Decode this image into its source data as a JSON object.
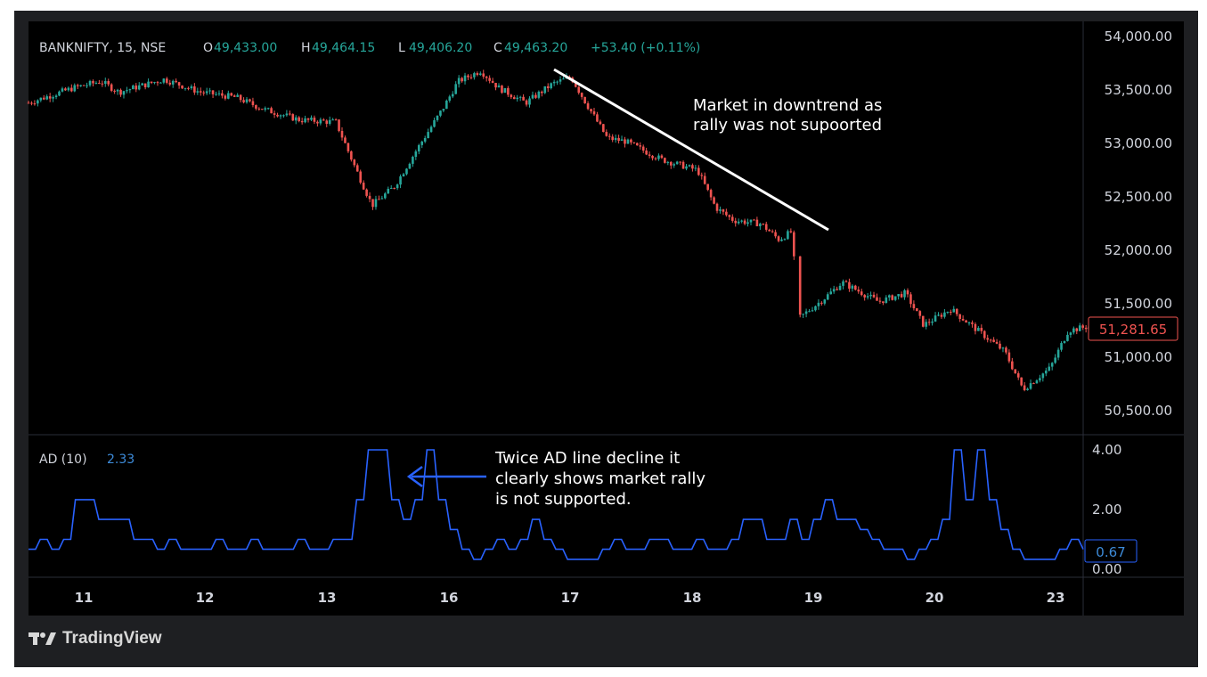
{
  "header": {
    "symbol": "BANKNIFTY, 15, NSE",
    "o_label": "O",
    "o_value": "49,433.00",
    "h_label": "H",
    "h_value": "49,464.15",
    "l_label": "L",
    "l_value": "49,406.20",
    "c_label": "C",
    "c_value": "49,463.20",
    "change": "+53.40 (+0.11%)"
  },
  "indicator": {
    "label": "AD (10)",
    "value": "2.33"
  },
  "price_axis_ticks": [
    "54,000.00",
    "53,500.00",
    "53,000.00",
    "52,500.00",
    "52,000.00",
    "51,500.00",
    "51,000.00",
    "50,500.00"
  ],
  "current_price_label": "51,281.65",
  "ad_axis_ticks": [
    "4.00",
    "2.00",
    "0.00"
  ],
  "ad_current_label": "0.67",
  "time_axis_ticks": [
    "11",
    "12",
    "13",
    "16",
    "17",
    "18",
    "19",
    "20",
    "23"
  ],
  "annotations": {
    "trend_note_line1": "Market in downtrend as",
    "trend_note_line2": "rally was not supoorted",
    "ad_note_line1": "Twice AD line decline it",
    "ad_note_line2": "clearly shows market rally",
    "ad_note_line3": "is not supported."
  },
  "branding": "TradingView",
  "colors": {
    "up": "#26a69a",
    "down": "#ef5350",
    "ad_line": "#2962ff",
    "ad_value": "#3d8bd9",
    "trendline": "#ffffff",
    "arrow": "#2962ff"
  },
  "chart_data": [
    {
      "type": "candlestick",
      "title": "BANKNIFTY, 15, NSE",
      "x_ticks": [
        "11",
        "12",
        "13",
        "16",
        "17",
        "18",
        "19",
        "20",
        "23"
      ],
      "ylim": [
        50250,
        54150
      ],
      "close_path": [
        {
          "x": 0,
          "y": 53380
        },
        {
          "x": 0.5,
          "y": 53520
        },
        {
          "x": 0.8,
          "y": 53580
        },
        {
          "x": 1.0,
          "y": 53480
        },
        {
          "x": 1.5,
          "y": 53600
        },
        {
          "x": 1.9,
          "y": 53480
        },
        {
          "x": 2.3,
          "y": 53430
        },
        {
          "x": 2.6,
          "y": 53320
        },
        {
          "x": 3.0,
          "y": 53220
        },
        {
          "x": 3.4,
          "y": 53200
        },
        {
          "x": 3.6,
          "y": 52800
        },
        {
          "x": 3.8,
          "y": 52420
        },
        {
          "x": 4.05,
          "y": 52600
        },
        {
          "x": 4.3,
          "y": 52950
        },
        {
          "x": 4.6,
          "y": 53350
        },
        {
          "x": 4.75,
          "y": 53580
        },
        {
          "x": 5.0,
          "y": 53680
        },
        {
          "x": 5.2,
          "y": 53520
        },
        {
          "x": 5.5,
          "y": 53380
        },
        {
          "x": 5.8,
          "y": 53560
        },
        {
          "x": 6.0,
          "y": 53620
        },
        {
          "x": 6.15,
          "y": 53400
        },
        {
          "x": 6.4,
          "y": 53050
        },
        {
          "x": 6.6,
          "y": 53020
        },
        {
          "x": 7.0,
          "y": 52850
        },
        {
          "x": 7.4,
          "y": 52750
        },
        {
          "x": 7.6,
          "y": 52400
        },
        {
          "x": 7.8,
          "y": 52280
        },
        {
          "x": 8.1,
          "y": 52250
        },
        {
          "x": 8.3,
          "y": 52100
        },
        {
          "x": 8.45,
          "y": 52180
        },
        {
          "x": 8.5,
          "y": 51350
        },
        {
          "x": 8.8,
          "y": 51550
        },
        {
          "x": 9.0,
          "y": 51700
        },
        {
          "x": 9.4,
          "y": 51520
        },
        {
          "x": 9.7,
          "y": 51600
        },
        {
          "x": 9.9,
          "y": 51300
        },
        {
          "x": 10.2,
          "y": 51450
        },
        {
          "x": 10.5,
          "y": 51250
        },
        {
          "x": 10.8,
          "y": 51050
        },
        {
          "x": 11.0,
          "y": 50700
        },
        {
          "x": 11.3,
          "y": 50900
        },
        {
          "x": 11.5,
          "y": 51250
        },
        {
          "x": 11.8,
          "y": 51300
        }
      ],
      "last_price": 51281.65
    },
    {
      "type": "line",
      "series": [
        {
          "name": "AD (10)",
          "values": [
            0.67,
            1.0,
            0.67,
            1.0,
            2.33,
            2.33,
            1.67,
            1.67,
            1.67,
            1.0,
            1.0,
            0.67,
            1.0,
            0.67,
            0.67,
            0.67,
            1.0,
            0.67,
            0.67,
            1.0,
            0.67,
            0.67,
            0.67,
            1.0,
            0.67,
            0.67,
            1.0,
            1.0,
            2.33,
            4.0,
            4.0,
            2.33,
            1.67,
            2.33,
            4.0,
            2.33,
            1.33,
            0.67,
            0.33,
            0.67,
            1.0,
            0.67,
            1.0,
            1.67,
            1.0,
            0.67,
            0.33,
            0.33,
            0.33,
            0.67,
            1.0,
            0.67,
            0.67,
            1.0,
            1.0,
            0.67,
            0.67,
            1.0,
            0.67,
            0.67,
            1.0,
            1.67,
            1.67,
            1.0,
            1.0,
            1.67,
            1.0,
            1.67,
            2.33,
            1.67,
            1.67,
            1.33,
            1.0,
            0.67,
            0.67,
            0.33,
            0.67,
            1.0,
            1.67,
            4.0,
            2.33,
            4.0,
            2.33,
            1.33,
            0.67,
            0.33,
            0.33,
            0.33,
            0.67,
            1.0,
            0.67
          ]
        }
      ],
      "ylim": [
        0,
        4.2
      ],
      "y_ticks": [
        "4.00",
        "2.00",
        "0.00"
      ]
    }
  ]
}
